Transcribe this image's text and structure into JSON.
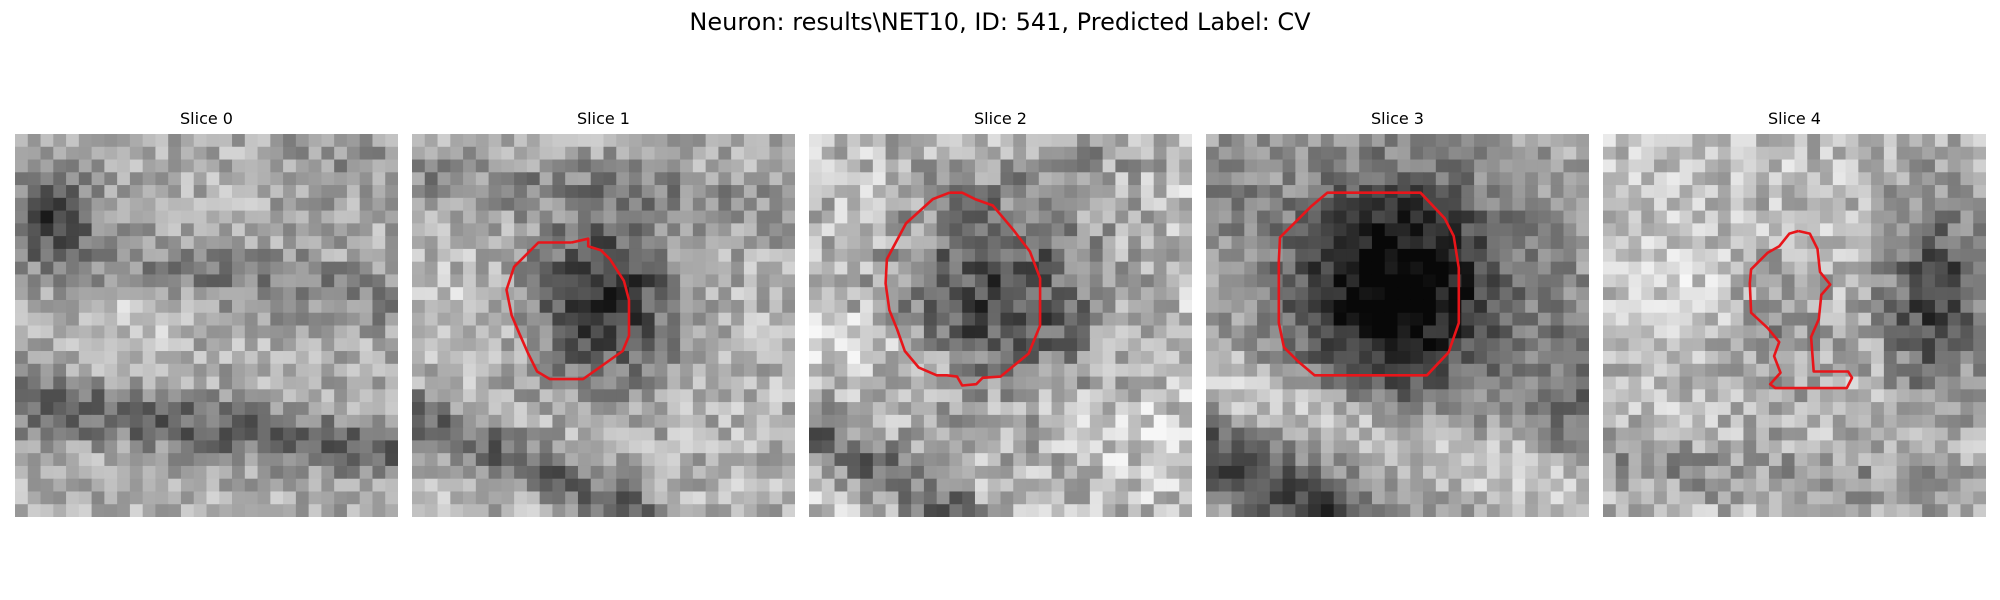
{
  "figure": {
    "title": "Neuron: results\\NET10, ID: 541, Predicted Label: CV"
  },
  "panels": [
    {
      "title": "Slice 0",
      "has_outline": false
    },
    {
      "title": "Slice 1",
      "has_outline": true
    },
    {
      "title": "Slice 2",
      "has_outline": true
    },
    {
      "title": "Slice 3",
      "has_outline": true
    },
    {
      "title": "Slice 4",
      "has_outline": true
    }
  ],
  "colors": {
    "outline": "#e8151a",
    "colormap": "gray"
  }
}
